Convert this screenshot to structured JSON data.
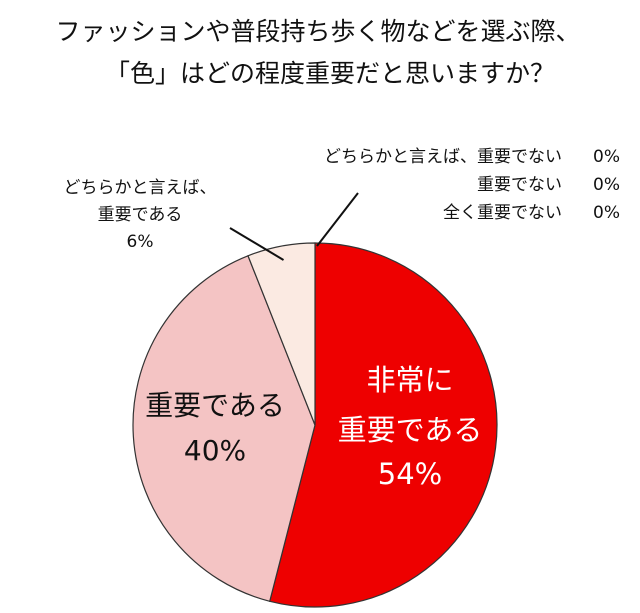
{
  "chart_data": {
    "type": "pie",
    "title": [
      "ファッションや普段持ち歩く物などを選ぶ際、",
      "「色」はどの程度重要だと思いますか？"
    ],
    "start_angle_deg": 0,
    "direction": "clockwise",
    "slices": [
      {
        "label": [
          "非常に",
          "重要である"
        ],
        "value": 54,
        "value_text": "54%",
        "color": "#ee0000",
        "text_color": "#ffffff"
      },
      {
        "label": [
          "重要である"
        ],
        "value": 40,
        "value_text": "40%",
        "color": "#f4c4c4",
        "text_color": "#111111"
      },
      {
        "label": [
          "どちらかと言えば、",
          "重要である"
        ],
        "value": 6,
        "value_text": "6%",
        "color": "#fbeae2",
        "text_color": "#111111"
      },
      {
        "label": [
          "どちらかと言えば、重要でない"
        ],
        "value": 0,
        "value_text": "0%",
        "color": "#ffffff",
        "text_color": "#111111"
      },
      {
        "label": [
          "重要でない"
        ],
        "value": 0,
        "value_text": "0%",
        "color": "#ffffff",
        "text_color": "#111111"
      },
      {
        "label": [
          "全く重要でない"
        ],
        "value": 0,
        "value_text": "0%",
        "color": "#ffffff",
        "text_color": "#111111"
      }
    ]
  }
}
